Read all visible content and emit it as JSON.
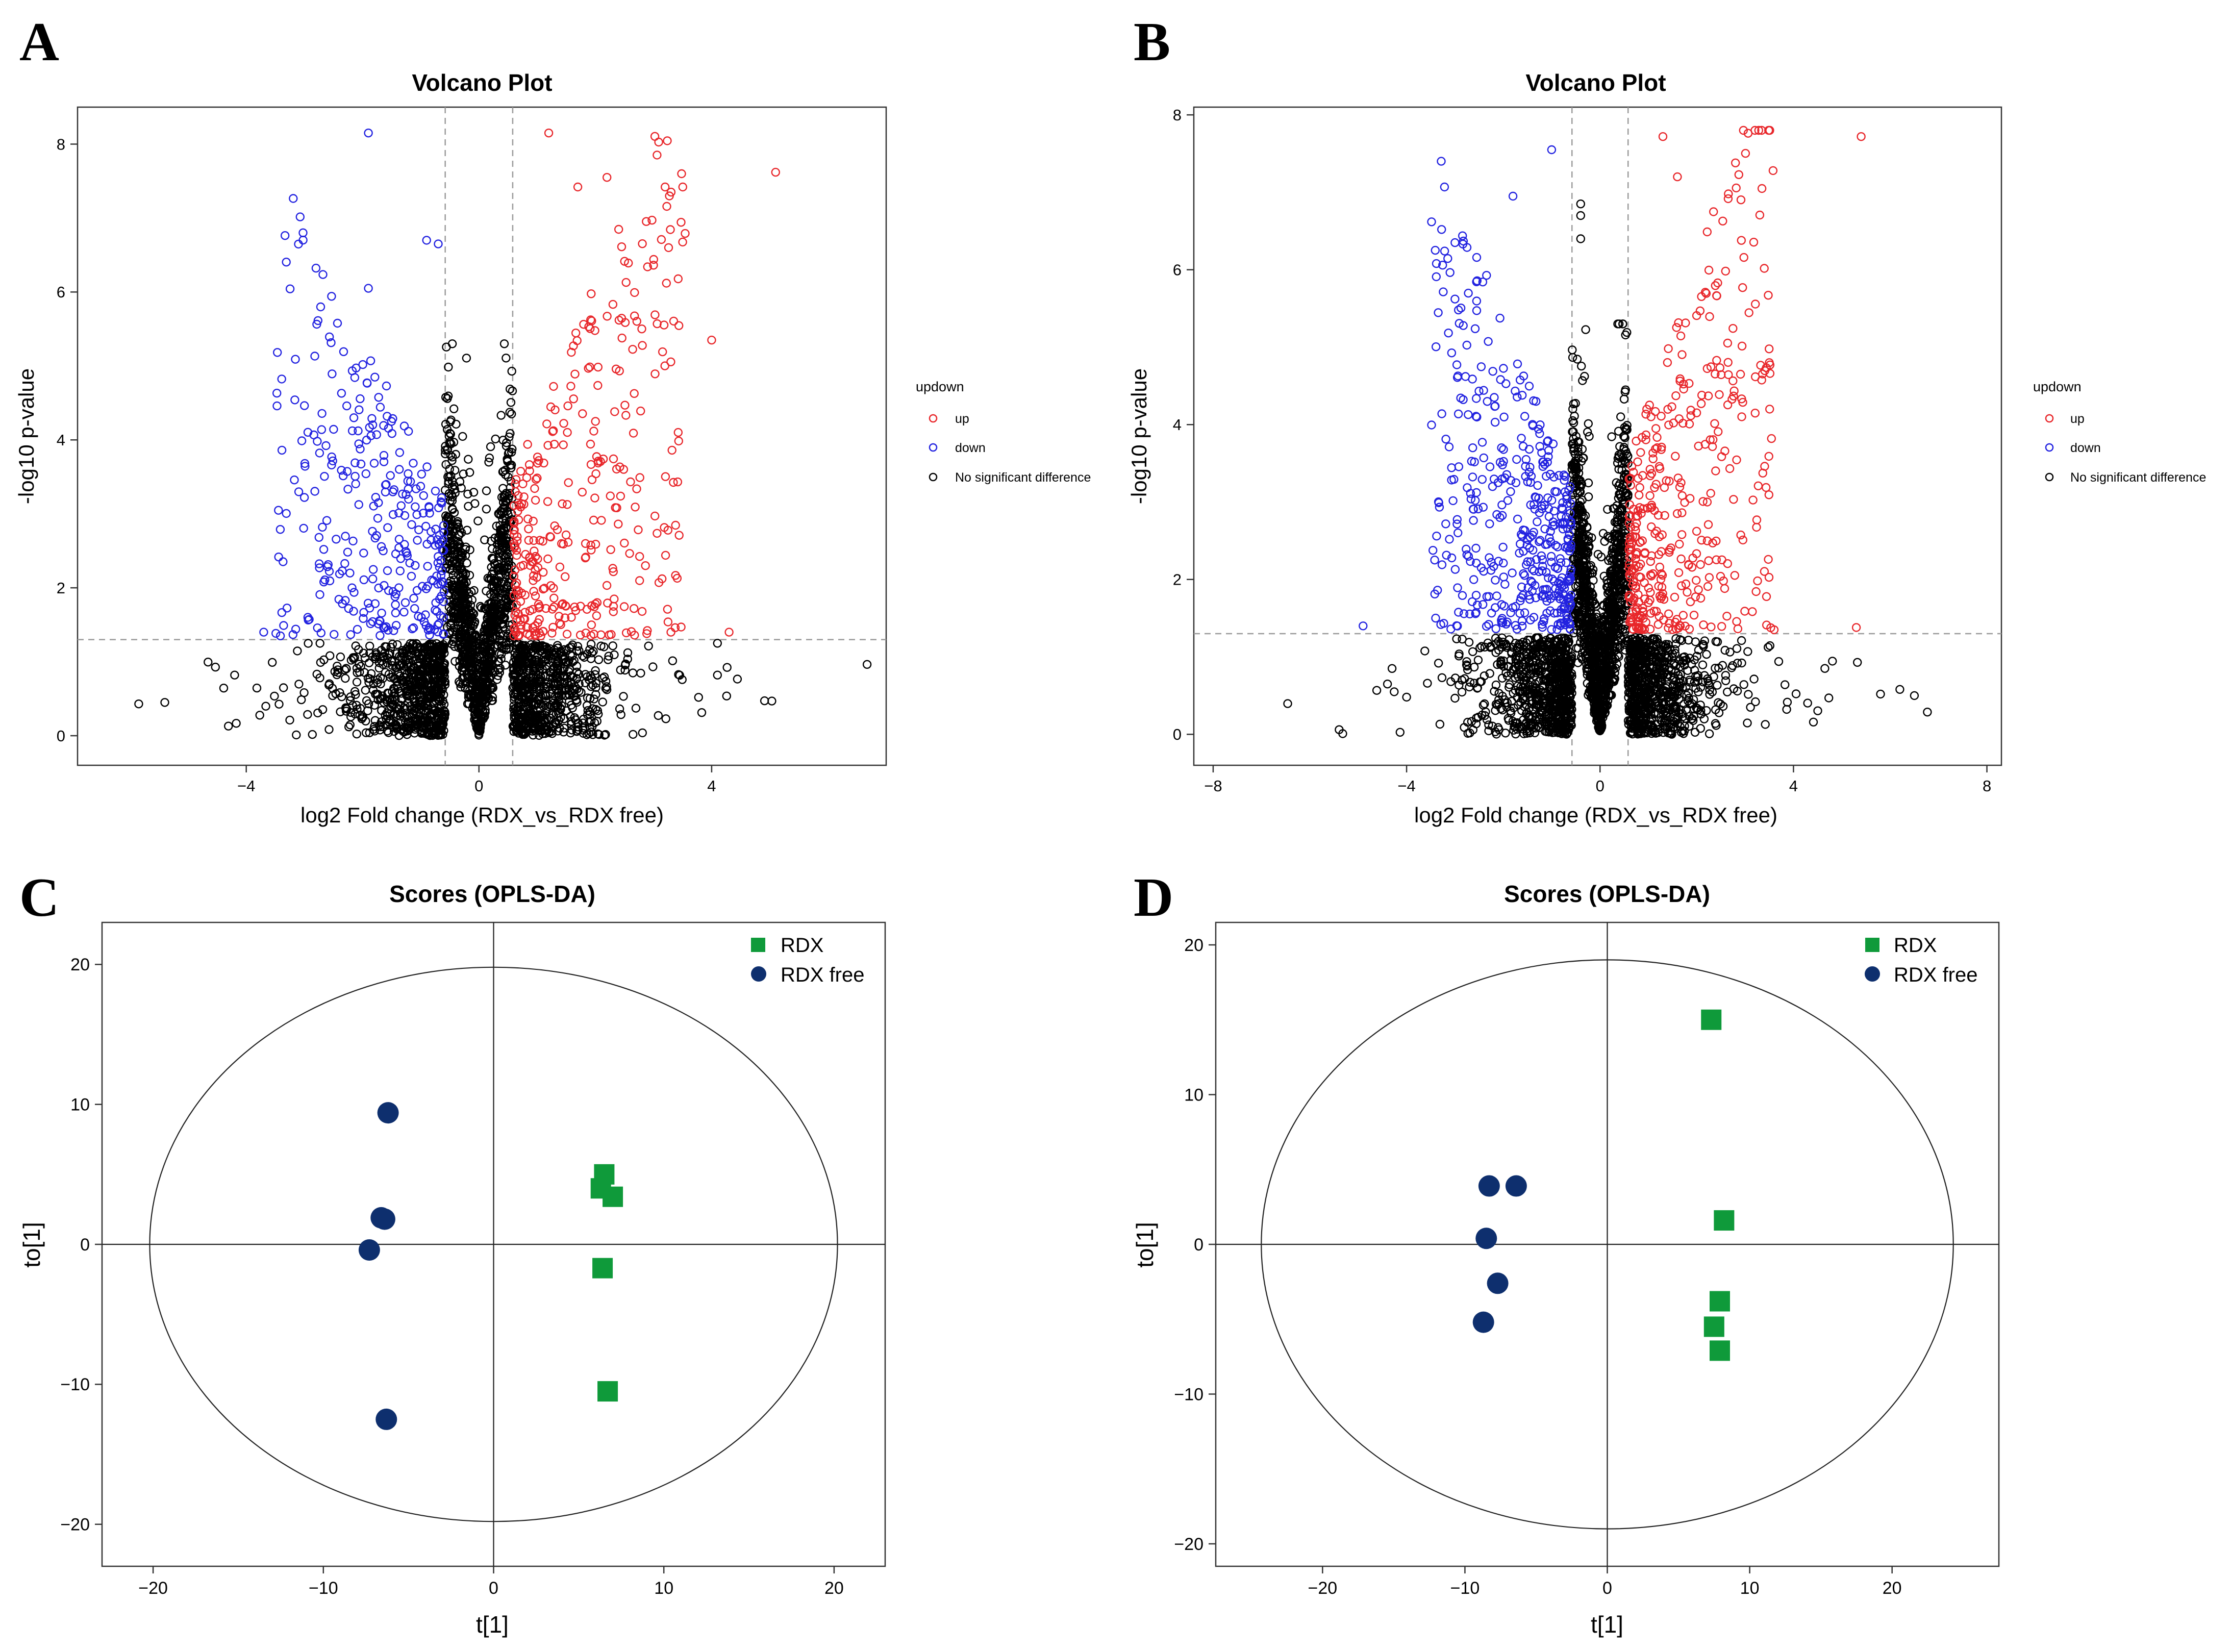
{
  "panels": {
    "A": {
      "letter": "A"
    },
    "B": {
      "letter": "B"
    },
    "C": {
      "letter": "C"
    },
    "D": {
      "letter": "D"
    }
  },
  "colors": {
    "up": "#e8262a",
    "down": "#2222e0",
    "nosig": "#000000",
    "rdx": "#0f9a3a",
    "rdx_free": "#0e2f6e",
    "guide": "#9a9a9a"
  },
  "chart_data": [
    {
      "id": "A",
      "type": "scatter",
      "title": "Volcano Plot",
      "xlabel": "log2 Fold change (RDX_vs_RDX free)",
      "ylabel": "-log10 p-value",
      "xlim": [
        -6.9,
        7.0
      ],
      "ylim": [
        -0.4,
        8.5
      ],
      "xticks": [
        -4,
        0,
        4
      ],
      "yticks": [
        0,
        2,
        4,
        6,
        8
      ],
      "fc_threshold": 0.58,
      "p_threshold": 1.3,
      "legend": {
        "title": "updown",
        "entries": [
          "up",
          "down",
          "No significant difference"
        ],
        "placement": "right-outside"
      },
      "seed": 11,
      "n_up": 330,
      "n_down": 300,
      "n_nosig": 2400,
      "highlights": {
        "up": [
          [
            1.2,
            8.15
          ],
          [
            5.1,
            7.62
          ],
          [
            2.2,
            7.55
          ],
          [
            1.7,
            7.42
          ],
          [
            3.2,
            7.42
          ],
          [
            4.0,
            5.35
          ],
          [
            4.3,
            1.4
          ],
          [
            3.3,
            1.4
          ]
        ],
        "down": [
          [
            -1.9,
            8.15
          ],
          [
            -0.9,
            6.7
          ],
          [
            -0.7,
            6.65
          ],
          [
            -1.9,
            6.05
          ],
          [
            -3.7,
            1.4
          ]
        ],
        "nosig": [
          [
            -5.4,
            0.45
          ],
          [
            -4.2,
            0.82
          ],
          [
            4.1,
            0.82
          ],
          [
            4.1,
            1.25
          ]
        ]
      }
    },
    {
      "id": "B",
      "type": "scatter",
      "title": "Volcano Plot",
      "xlabel": "log2 Fold change (RDX_vs_RDX free)",
      "ylabel": "-log10 p-value",
      "xlim": [
        -8.4,
        8.3
      ],
      "ylim": [
        -0.4,
        8.1
      ],
      "xticks": [
        -8,
        -4,
        0,
        4,
        8
      ],
      "yticks": [
        0,
        2,
        4,
        6,
        8
      ],
      "fc_threshold": 0.58,
      "p_threshold": 1.3,
      "legend": {
        "title": "updown",
        "entries": [
          "up",
          "down",
          "No significant difference"
        ],
        "placement": "right-outside"
      },
      "seed": 29,
      "n_up": 380,
      "n_down": 420,
      "n_nosig": 2700,
      "highlights": {
        "up": [
          [
            1.3,
            7.72
          ],
          [
            5.4,
            7.72
          ],
          [
            2.8,
            7.38
          ],
          [
            1.6,
            7.2
          ],
          [
            3.5,
            4.8
          ],
          [
            5.3,
            1.38
          ],
          [
            3.6,
            1.35
          ]
        ],
        "down": [
          [
            -1.0,
            7.55
          ],
          [
            -1.8,
            6.95
          ],
          [
            -3.0,
            6.35
          ],
          [
            -4.9,
            1.4
          ],
          [
            -3.4,
            1.5
          ]
        ],
        "nosig": [
          [
            -0.4,
            6.85
          ],
          [
            -0.4,
            6.7
          ],
          [
            -0.4,
            6.4
          ],
          [
            6.5,
            0.5
          ],
          [
            6.2,
            0.58
          ],
          [
            5.8,
            0.52
          ],
          [
            -4.0,
            0.48
          ],
          [
            -4.3,
            0.85
          ]
        ]
      }
    },
    {
      "id": "C",
      "type": "scatter",
      "title": "Scores (OPLS-DA)",
      "xlabel": "t[1]",
      "ylabel": "to[1]",
      "xlim": [
        -23,
        23
      ],
      "ylim": [
        -23,
        23
      ],
      "xticks": [
        -20,
        -10,
        0,
        10,
        20
      ],
      "yticks": [
        -20,
        -10,
        0,
        10,
        20
      ],
      "ellipse": {
        "rx": 20.2,
        "ry": 19.8
      },
      "legend": {
        "entries": [
          "RDX",
          "RDX free"
        ],
        "placement": "top-right"
      },
      "series": [
        {
          "name": "RDX",
          "marker": "square",
          "points": [
            [
              6.5,
              5.0
            ],
            [
              6.3,
              4.0
            ],
            [
              7.0,
              3.4
            ],
            [
              6.4,
              -1.7
            ],
            [
              6.7,
              -10.5
            ]
          ]
        },
        {
          "name": "RDX free",
          "marker": "circle",
          "points": [
            [
              -6.2,
              9.4
            ],
            [
              -6.6,
              1.9
            ],
            [
              -6.4,
              1.8
            ],
            [
              -7.3,
              -0.4
            ],
            [
              -6.3,
              -12.5
            ]
          ]
        }
      ]
    },
    {
      "id": "D",
      "type": "scatter",
      "title": "Scores (OPLS-DA)",
      "xlabel": "t[1]",
      "ylabel": "to[1]",
      "xlim": [
        -27.5,
        27.5
      ],
      "ylim": [
        -21.5,
        21.5
      ],
      "xticks": [
        -20,
        -10,
        0,
        10,
        20
      ],
      "yticks": [
        -20,
        -10,
        0,
        10,
        20
      ],
      "ellipse": {
        "rx": 24.3,
        "ry": 19.0
      },
      "legend": {
        "entries": [
          "RDX",
          "RDX free"
        ],
        "placement": "top-right"
      },
      "series": [
        {
          "name": "RDX",
          "marker": "square",
          "points": [
            [
              7.3,
              15.0
            ],
            [
              8.2,
              1.6
            ],
            [
              7.9,
              -3.8
            ],
            [
              7.5,
              -5.5
            ],
            [
              7.9,
              -7.1
            ]
          ]
        },
        {
          "name": "RDX free",
          "marker": "circle",
          "points": [
            [
              -8.3,
              3.9
            ],
            [
              -6.4,
              3.9
            ],
            [
              -8.5,
              0.4
            ],
            [
              -7.7,
              -2.6
            ],
            [
              -8.7,
              -5.2
            ]
          ]
        }
      ]
    }
  ]
}
